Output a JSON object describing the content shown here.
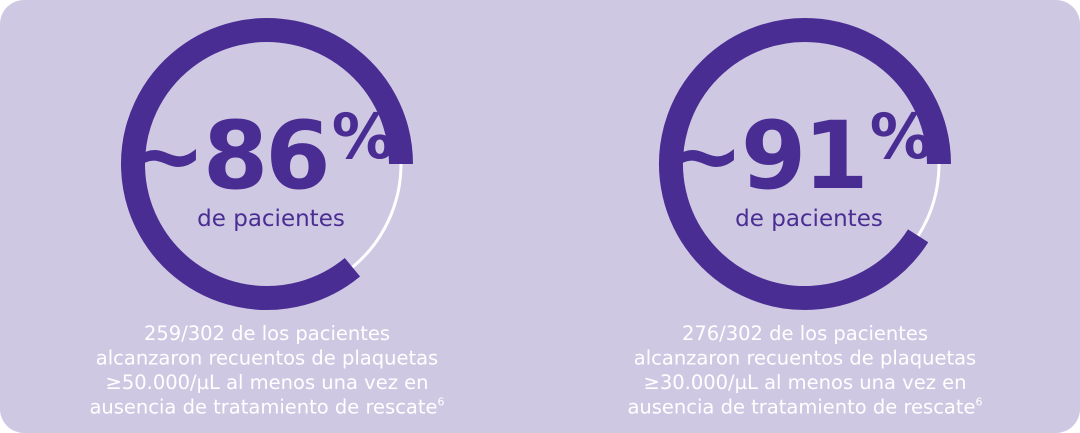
{
  "stats": [
    {
      "tilde": "~",
      "value": 86,
      "unit": "%",
      "caption": "de pacientes",
      "description": [
        "259/302 de los pacientes",
        "alcanzaron recuentos de plaquetas",
        "≥50.000/µL al menos una vez en",
        "ausencia de tratamiento de rescate"
      ],
      "reference": "6"
    },
    {
      "tilde": "~",
      "value": 91,
      "unit": "%",
      "caption": "de pacientes",
      "description": [
        "276/302 de los pacientes",
        "alcanzaron recuentos de plaquetas",
        "≥30.000/µL al menos una vez en",
        "ausencia de tratamiento de rescate"
      ],
      "reference": "6"
    }
  ]
}
